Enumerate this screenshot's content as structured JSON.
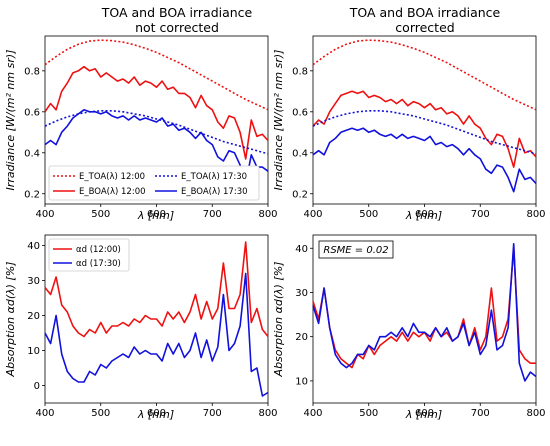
{
  "chart_data": [
    {
      "type": "line",
      "title_line1": "TOA and BOA irradiance",
      "title_line2": "not corrected",
      "xlabel": "λ [nm]",
      "ylabel": "Irradiance [W/(m² nm sr)]",
      "xlim": [
        400,
        800
      ],
      "ylim": [
        0.15,
        0.97
      ],
      "xticks": [
        400,
        500,
        600,
        700,
        800
      ],
      "yticks": [
        0.2,
        0.4,
        0.6,
        0.8
      ],
      "legend": "bottom-left",
      "series": [
        {
          "name": "E_TOA(λ) 12:00",
          "color": "#ee1111",
          "dash": true,
          "x": [
            400,
            420,
            440,
            460,
            480,
            500,
            520,
            540,
            560,
            580,
            600,
            620,
            640,
            660,
            680,
            700,
            720,
            740,
            760,
            780,
            800
          ],
          "y": [
            0.83,
            0.87,
            0.905,
            0.93,
            0.945,
            0.95,
            0.947,
            0.94,
            0.927,
            0.91,
            0.89,
            0.865,
            0.84,
            0.81,
            0.78,
            0.75,
            0.72,
            0.69,
            0.66,
            0.635,
            0.61
          ]
        },
        {
          "name": "E_BOA(λ) 12:00",
          "color": "#ee1111",
          "dash": false,
          "x": [
            400,
            410,
            420,
            430,
            440,
            450,
            460,
            470,
            480,
            490,
            500,
            510,
            520,
            530,
            540,
            550,
            560,
            570,
            580,
            590,
            600,
            610,
            620,
            630,
            640,
            650,
            660,
            670,
            680,
            690,
            700,
            710,
            720,
            730,
            740,
            750,
            760,
            770,
            780,
            790,
            800
          ],
          "y": [
            0.6,
            0.64,
            0.61,
            0.7,
            0.74,
            0.79,
            0.8,
            0.82,
            0.8,
            0.81,
            0.77,
            0.79,
            0.77,
            0.75,
            0.76,
            0.74,
            0.77,
            0.73,
            0.75,
            0.74,
            0.72,
            0.75,
            0.71,
            0.72,
            0.69,
            0.69,
            0.67,
            0.62,
            0.68,
            0.63,
            0.61,
            0.55,
            0.52,
            0.58,
            0.57,
            0.5,
            0.37,
            0.56,
            0.48,
            0.49,
            0.46
          ]
        },
        {
          "name": "E_TOA(λ) 17:30",
          "color": "#1111dd",
          "dash": true,
          "x": [
            400,
            420,
            440,
            460,
            480,
            500,
            520,
            540,
            560,
            580,
            600,
            620,
            640,
            660,
            680,
            700,
            720,
            740,
            760,
            780,
            800
          ],
          "y": [
            0.53,
            0.555,
            0.575,
            0.59,
            0.6,
            0.605,
            0.605,
            0.6,
            0.59,
            0.58,
            0.565,
            0.55,
            0.535,
            0.515,
            0.495,
            0.475,
            0.455,
            0.44,
            0.425,
            0.41,
            0.395
          ]
        },
        {
          "name": "E_BOA(λ) 17:30",
          "color": "#1111dd",
          "dash": false,
          "x": [
            400,
            410,
            420,
            430,
            440,
            450,
            460,
            470,
            480,
            490,
            500,
            510,
            520,
            530,
            540,
            550,
            560,
            570,
            580,
            590,
            600,
            610,
            620,
            630,
            640,
            650,
            660,
            670,
            680,
            690,
            700,
            710,
            720,
            730,
            740,
            750,
            760,
            770,
            780,
            790,
            800
          ],
          "y": [
            0.44,
            0.46,
            0.44,
            0.5,
            0.53,
            0.57,
            0.59,
            0.61,
            0.6,
            0.6,
            0.59,
            0.6,
            0.58,
            0.57,
            0.58,
            0.56,
            0.58,
            0.56,
            0.57,
            0.56,
            0.55,
            0.57,
            0.53,
            0.54,
            0.51,
            0.52,
            0.5,
            0.47,
            0.5,
            0.46,
            0.44,
            0.38,
            0.36,
            0.41,
            0.4,
            0.34,
            0.25,
            0.39,
            0.33,
            0.33,
            0.31
          ]
        }
      ]
    },
    {
      "type": "line",
      "title_line1": "TOA and BOA irradiance",
      "title_line2": "corrected",
      "xlabel": "λ [nm]",
      "ylabel": "Irradiance [W/(m² nm sr)]",
      "xlim": [
        400,
        800
      ],
      "ylim": [
        0.15,
        0.97
      ],
      "xticks": [
        400,
        500,
        600,
        700,
        800
      ],
      "yticks": [
        0.2,
        0.4,
        0.6,
        0.8
      ],
      "series": [
        {
          "name": "E_TOA(λ) 12:00",
          "color": "#ee1111",
          "dash": true,
          "x": [
            400,
            420,
            440,
            460,
            480,
            500,
            520,
            540,
            560,
            580,
            600,
            620,
            640,
            660,
            680,
            700,
            720,
            740,
            760,
            780,
            800
          ],
          "y": [
            0.83,
            0.87,
            0.905,
            0.93,
            0.945,
            0.95,
            0.947,
            0.94,
            0.927,
            0.91,
            0.89,
            0.865,
            0.84,
            0.81,
            0.78,
            0.75,
            0.72,
            0.69,
            0.66,
            0.635,
            0.61
          ]
        },
        {
          "name": "E_BOA(λ) 12:00",
          "color": "#ee1111",
          "dash": false,
          "x": [
            400,
            410,
            420,
            430,
            440,
            450,
            460,
            470,
            480,
            490,
            500,
            510,
            520,
            530,
            540,
            550,
            560,
            570,
            580,
            590,
            600,
            610,
            620,
            630,
            640,
            650,
            660,
            670,
            680,
            690,
            700,
            710,
            720,
            730,
            740,
            750,
            760,
            770,
            780,
            790,
            800
          ],
          "y": [
            0.53,
            0.56,
            0.54,
            0.6,
            0.64,
            0.68,
            0.69,
            0.7,
            0.69,
            0.7,
            0.67,
            0.68,
            0.67,
            0.65,
            0.66,
            0.64,
            0.66,
            0.63,
            0.65,
            0.64,
            0.62,
            0.64,
            0.61,
            0.62,
            0.59,
            0.6,
            0.58,
            0.54,
            0.58,
            0.54,
            0.52,
            0.47,
            0.44,
            0.49,
            0.48,
            0.42,
            0.33,
            0.47,
            0.4,
            0.41,
            0.38
          ]
        },
        {
          "name": "E_TOA(λ) 17:30",
          "color": "#1111dd",
          "dash": true,
          "x": [
            400,
            420,
            440,
            460,
            480,
            500,
            520,
            540,
            560,
            580,
            600,
            620,
            640,
            660,
            680,
            700,
            720,
            740,
            760,
            780,
            800
          ],
          "y": [
            0.53,
            0.555,
            0.575,
            0.59,
            0.6,
            0.605,
            0.605,
            0.6,
            0.59,
            0.58,
            0.565,
            0.55,
            0.535,
            0.515,
            0.495,
            0.475,
            0.455,
            0.44,
            0.425,
            0.41,
            0.395
          ]
        },
        {
          "name": "E_BOA(λ) 17:30",
          "color": "#1111dd",
          "dash": false,
          "x": [
            400,
            410,
            420,
            430,
            440,
            450,
            460,
            470,
            480,
            490,
            500,
            510,
            520,
            530,
            540,
            550,
            560,
            570,
            580,
            590,
            600,
            610,
            620,
            630,
            640,
            650,
            660,
            670,
            680,
            690,
            700,
            710,
            720,
            730,
            740,
            750,
            760,
            770,
            780,
            790,
            800
          ],
          "y": [
            0.39,
            0.41,
            0.39,
            0.45,
            0.47,
            0.5,
            0.51,
            0.52,
            0.51,
            0.52,
            0.5,
            0.51,
            0.49,
            0.48,
            0.49,
            0.47,
            0.49,
            0.47,
            0.48,
            0.47,
            0.46,
            0.48,
            0.44,
            0.45,
            0.43,
            0.44,
            0.42,
            0.39,
            0.42,
            0.39,
            0.37,
            0.32,
            0.3,
            0.34,
            0.33,
            0.28,
            0.21,
            0.32,
            0.27,
            0.28,
            0.25
          ]
        }
      ]
    },
    {
      "type": "line",
      "xlabel": "λ [nm]",
      "ylabel": "Absorption αd(λ) [%]",
      "xlim": [
        400,
        800
      ],
      "ylim": [
        -5,
        43
      ],
      "xticks": [
        400,
        500,
        600,
        700,
        800
      ],
      "yticks": [
        0,
        10,
        20,
        30,
        40
      ],
      "legend": "top-left",
      "series": [
        {
          "name": "αd (12:00)",
          "color": "#ee1111",
          "dash": false,
          "x": [
            400,
            410,
            420,
            430,
            440,
            450,
            460,
            470,
            480,
            490,
            500,
            510,
            520,
            530,
            540,
            550,
            560,
            570,
            580,
            590,
            600,
            610,
            620,
            630,
            640,
            650,
            660,
            670,
            680,
            690,
            700,
            710,
            720,
            730,
            740,
            750,
            760,
            770,
            780,
            790,
            800
          ],
          "y": [
            28,
            26,
            31,
            23,
            21,
            17,
            15,
            14,
            16,
            15,
            18,
            15,
            17,
            17,
            18,
            17,
            19,
            18,
            20,
            19,
            19,
            17,
            21,
            19,
            21,
            18,
            21,
            26,
            19,
            24,
            19,
            22,
            35,
            22,
            22,
            26,
            41,
            18,
            22,
            16,
            14
          ]
        },
        {
          "name": "αd (17:30)",
          "color": "#1111dd",
          "dash": false,
          "x": [
            400,
            410,
            420,
            430,
            440,
            450,
            460,
            470,
            480,
            490,
            500,
            510,
            520,
            530,
            540,
            550,
            560,
            570,
            580,
            590,
            600,
            610,
            620,
            630,
            640,
            650,
            660,
            670,
            680,
            690,
            700,
            710,
            720,
            730,
            740,
            750,
            760,
            770,
            780,
            790,
            800
          ],
          "y": [
            15,
            12,
            20,
            9,
            4,
            2,
            1,
            1,
            4,
            3,
            6,
            5,
            7,
            8,
            9,
            8,
            11,
            9,
            10,
            9,
            9,
            7,
            12,
            9,
            12,
            8,
            10,
            15,
            8,
            13,
            7,
            11,
            26,
            10,
            12,
            17,
            32,
            4,
            5,
            -3,
            -2
          ]
        }
      ]
    },
    {
      "type": "line",
      "annotation": "RSME = 0.02",
      "xlabel": "λ [nm]",
      "ylabel": "Absorption αd(λ) [%]",
      "xlim": [
        400,
        800
      ],
      "ylim": [
        5,
        43
      ],
      "xticks": [
        400,
        500,
        600,
        700,
        800
      ],
      "yticks": [
        10,
        20,
        30,
        40
      ],
      "series": [
        {
          "name": "αd (12:00)",
          "color": "#ee1111",
          "dash": false,
          "x": [
            400,
            410,
            420,
            430,
            440,
            450,
            460,
            470,
            480,
            490,
            500,
            510,
            520,
            530,
            540,
            550,
            560,
            570,
            580,
            590,
            600,
            610,
            620,
            630,
            640,
            650,
            660,
            670,
            680,
            690,
            700,
            710,
            720,
            730,
            740,
            750,
            760,
            770,
            780,
            790,
            800
          ],
          "y": [
            28,
            24,
            31,
            22,
            17,
            15,
            14,
            13,
            16,
            15,
            18,
            16,
            18,
            19,
            20,
            19,
            21,
            19,
            21,
            20,
            21,
            19,
            22,
            20,
            21,
            19,
            20,
            24,
            18,
            22,
            17,
            20,
            31,
            19,
            20,
            24,
            40,
            17,
            15,
            14,
            14
          ]
        },
        {
          "name": "αd (17:30)",
          "color": "#1111dd",
          "dash": false,
          "x": [
            400,
            410,
            420,
            430,
            440,
            450,
            460,
            470,
            480,
            490,
            500,
            510,
            520,
            530,
            540,
            550,
            560,
            570,
            580,
            590,
            600,
            610,
            620,
            630,
            640,
            650,
            660,
            670,
            680,
            690,
            700,
            710,
            720,
            730,
            740,
            750,
            760,
            770,
            780,
            790,
            800
          ],
          "y": [
            27,
            23,
            31,
            22,
            16,
            14,
            13,
            14,
            16,
            16,
            18,
            17,
            20,
            20,
            21,
            20,
            22,
            20,
            23,
            21,
            21,
            20,
            22,
            20,
            22,
            19,
            20,
            23,
            18,
            21,
            16,
            18,
            26,
            17,
            18,
            22,
            41,
            14,
            10,
            12,
            11
          ]
        }
      ]
    }
  ]
}
